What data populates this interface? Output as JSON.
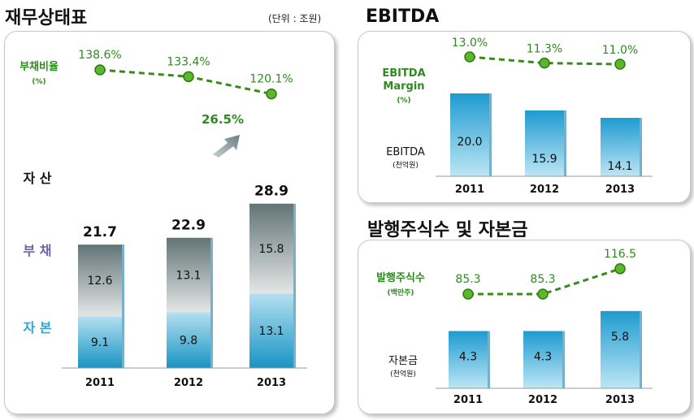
{
  "colors": {
    "line": "#3a8a1a",
    "marker": "#5cb82a",
    "label_green": "#2f8a1f",
    "debt_label": "#6c64b0",
    "equity_label": "#2aa7d6",
    "growth": "#2f8a1f"
  },
  "chart_data": [
    {
      "type": "bar",
      "title": "재무상태표",
      "unit_note": "(단위 : 조원)",
      "categories": [
        "2011",
        "2012",
        "2013"
      ],
      "stack": true,
      "series": [
        {
          "name": "자 본",
          "values": [
            9.1,
            9.8,
            13.1
          ]
        },
        {
          "name": "부 채",
          "values": [
            12.6,
            13.1,
            15.8
          ]
        }
      ],
      "totals_label": "자 산",
      "totals": [
        21.7,
        22.9,
        28.9
      ],
      "growth_annotation": "26.5%",
      "line": {
        "name": "부채비율",
        "unit": "(%)",
        "values": [
          138.6,
          133.4,
          120.1
        ],
        "labels": [
          "138.6%",
          "133.4%",
          "120.1%"
        ]
      }
    },
    {
      "type": "bar",
      "title": "EBITDA",
      "categories": [
        "2011",
        "2012",
        "2013"
      ],
      "series": [
        {
          "name": "EBITDA",
          "unit": "(천억원)",
          "values": [
            20.0,
            15.9,
            14.1
          ],
          "labels": [
            "20.0",
            "15.9",
            "14.1"
          ]
        }
      ],
      "line": {
        "name_lines": [
          "EBITDA",
          "Margin"
        ],
        "unit": "(%)",
        "values": [
          13.0,
          11.3,
          11.0
        ],
        "labels": [
          "13.0%",
          "11.3%",
          "11.0%"
        ]
      }
    },
    {
      "type": "bar",
      "title": "발행주식수 및 자본금",
      "categories": [
        "2011",
        "2012",
        "2013"
      ],
      "series": [
        {
          "name": "자본금",
          "unit": "(천억원)",
          "values": [
            4.3,
            4.3,
            5.8
          ],
          "labels": [
            "4.3",
            "4.3",
            "5.8"
          ]
        }
      ],
      "line": {
        "name": "발행주식수",
        "unit": "(백만주)",
        "values": [
          85.3,
          85.3,
          116.5
        ],
        "labels": [
          "85.3",
          "85.3",
          "116.5"
        ]
      }
    }
  ]
}
